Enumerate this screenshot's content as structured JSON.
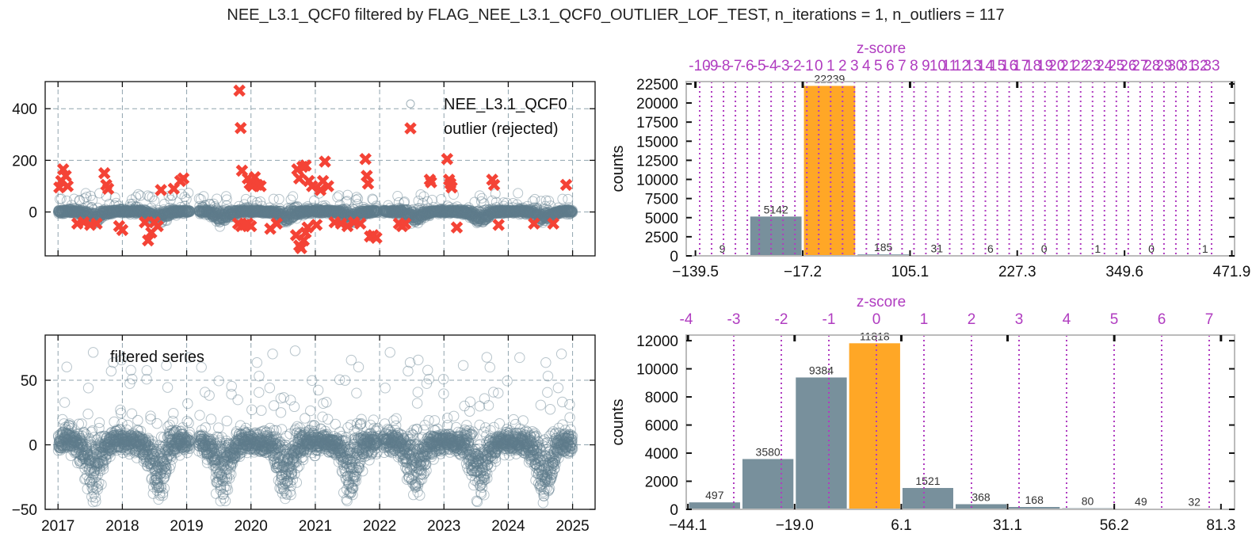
{
  "figure": {
    "title": "NEE_L3.1_QCF0 filtered by FLAG_NEE_L3.1_QCF0_OUTLIER_LOF_TEST, n_iterations = 1, n_outliers = 117"
  },
  "colors": {
    "series": "#607d8b",
    "outlier": "#f44336",
    "bar": "#78909c",
    "bar_highlight": "#ffa726",
    "zscore": "#b03cc0",
    "grid": "#90a4ae"
  },
  "chart_data": [
    {
      "id": "timeseries-outliers",
      "type": "scatter",
      "title": "",
      "xlabel": "",
      "ylabel": "",
      "xlim": [
        2016.8,
        2025.35
      ],
      "ylim": [
        -170,
        505
      ],
      "yticks": [
        0,
        200,
        400
      ],
      "xticks": [
        2017,
        2018,
        2019,
        2020,
        2021,
        2022,
        2023,
        2024,
        2025
      ],
      "xticklabels_visible": false,
      "grid": true,
      "legend": {
        "position": "top-right",
        "entries": [
          "NEE_L3.1_QCF0",
          "outlier (rejected)"
        ]
      },
      "series": [
        {
          "name": "NEE_L3.1_QCF0",
          "marker": "open-circle"
        },
        {
          "name": "outlier (rejected)",
          "marker": "x",
          "points": [
            [
              2017.02,
              95
            ],
            [
              2017.05,
              120
            ],
            [
              2017.08,
              165
            ],
            [
              2017.12,
              140
            ],
            [
              2017.15,
              100
            ],
            [
              2017.3,
              -45
            ],
            [
              2017.4,
              -40
            ],
            [
              2017.5,
              -50
            ],
            [
              2017.6,
              -45
            ],
            [
              2017.72,
              150
            ],
            [
              2017.75,
              105
            ],
            [
              2017.78,
              90
            ],
            [
              2017.95,
              -55
            ],
            [
              2018.0,
              -70
            ],
            [
              2018.35,
              -40
            ],
            [
              2018.4,
              -110
            ],
            [
              2018.45,
              -80
            ],
            [
              2018.5,
              -40
            ],
            [
              2018.55,
              -55
            ],
            [
              2018.6,
              85
            ],
            [
              2018.8,
              90
            ],
            [
              2018.9,
              120
            ],
            [
              2018.95,
              130
            ],
            [
              2019.8,
              -45
            ],
            [
              2019.85,
              -55
            ],
            [
              2019.9,
              -50
            ],
            [
              2019.95,
              -45
            ],
            [
              2020.0,
              -55
            ],
            [
              2019.82,
              470
            ],
            [
              2019.84,
              325
            ],
            [
              2019.86,
              160
            ],
            [
              2019.95,
              130
            ],
            [
              2019.98,
              110
            ],
            [
              2020.02,
              100
            ],
            [
              2020.06,
              135
            ],
            [
              2020.1,
              105
            ],
            [
              2020.15,
              100
            ],
            [
              2020.3,
              -65
            ],
            [
              2020.4,
              -45
            ],
            [
              2020.7,
              -90
            ],
            [
              2020.75,
              -130
            ],
            [
              2020.78,
              -140
            ],
            [
              2020.82,
              -110
            ],
            [
              2020.85,
              -80
            ],
            [
              2020.88,
              -60
            ],
            [
              2020.72,
              165
            ],
            [
              2020.75,
              130
            ],
            [
              2020.8,
              175
            ],
            [
              2020.85,
              180
            ],
            [
              2020.9,
              120
            ],
            [
              2020.95,
              100
            ],
            [
              2021.02,
              -50
            ],
            [
              2021.08,
              85
            ],
            [
              2021.12,
              120
            ],
            [
              2021.15,
              195
            ],
            [
              2021.2,
              100
            ],
            [
              2021.3,
              -40
            ],
            [
              2021.4,
              -45
            ],
            [
              2021.5,
              -55
            ],
            [
              2021.6,
              -40
            ],
            [
              2021.7,
              -45
            ],
            [
              2021.78,
              205
            ],
            [
              2021.8,
              140
            ],
            [
              2021.82,
              110
            ],
            [
              2021.85,
              -95
            ],
            [
              2021.9,
              -90
            ],
            [
              2021.95,
              -100
            ],
            [
              2022.3,
              -45
            ],
            [
              2022.35,
              -55
            ],
            [
              2022.4,
              -45
            ],
            [
              2022.78,
              125
            ],
            [
              2022.8,
              115
            ],
            [
              2023.05,
              205
            ],
            [
              2023.08,
              125
            ],
            [
              2023.1,
              110
            ],
            [
              2023.12,
              95
            ],
            [
              2023.2,
              -60
            ],
            [
              2023.75,
              125
            ],
            [
              2023.78,
              105
            ],
            [
              2023.85,
              -50
            ],
            [
              2024.4,
              -45
            ],
            [
              2024.7,
              -45
            ],
            [
              2024.9,
              105
            ]
          ]
        }
      ]
    },
    {
      "id": "histogram-top",
      "type": "bar",
      "title": "",
      "xlabel": "",
      "ylabel": "counts",
      "xticklabels": [
        "−139.5",
        "−17.2",
        "105.1",
        "227.3",
        "349.6",
        "471.9"
      ],
      "xticks": [
        -139.5,
        -17.2,
        105.1,
        227.3,
        349.6,
        471.9
      ],
      "xlim": [
        -150,
        475
      ],
      "ylim": [
        0,
        22800
      ],
      "yticks": [
        0,
        2500,
        5000,
        7500,
        10000,
        12500,
        15000,
        17500,
        20000,
        22500
      ],
      "bins_edges": [
        -139.5,
        -78.35,
        -17.2,
        43.95,
        105.1,
        166.2,
        227.3,
        288.45,
        349.6,
        410.75,
        471.9
      ],
      "values": [
        9,
        5142,
        22239,
        185,
        31,
        6,
        0,
        1,
        0,
        1
      ],
      "highlight_index": 2,
      "secondary_axis": {
        "label": "z-score",
        "ticklabels": [
          "-10",
          "-9",
          "-8",
          "-7",
          "-6",
          "-5",
          "-4",
          "-3",
          "-2",
          "-1",
          "0",
          "1",
          "2",
          "3",
          "4",
          "5",
          "6",
          "7",
          "8",
          "9",
          "10",
          "11",
          "12",
          "13",
          "14",
          "15",
          "16",
          "17",
          "18",
          "19",
          "20",
          "21",
          "22",
          "23",
          "24",
          "25",
          "26",
          "27",
          "28",
          "29",
          "30",
          "31",
          "32",
          "33"
        ],
        "values": [
          -10,
          -9,
          -8,
          -7,
          -6,
          -5,
          -4,
          -3,
          -2,
          -1,
          0,
          1,
          2,
          3,
          4,
          5,
          6,
          7,
          8,
          9,
          10,
          11,
          12,
          13,
          14,
          15,
          16,
          17,
          18,
          19,
          20,
          21,
          22,
          23,
          24,
          25,
          26,
          27,
          28,
          29,
          30,
          31,
          32,
          33
        ]
      }
    },
    {
      "id": "timeseries-filtered",
      "type": "scatter",
      "title": "",
      "xlabel": "",
      "ylabel": "",
      "xlim": [
        2016.8,
        2025.35
      ],
      "ylim": [
        -50,
        85
      ],
      "yticks": [
        -50,
        0,
        50
      ],
      "xticks": [
        2017,
        2018,
        2019,
        2020,
        2021,
        2022,
        2023,
        2024,
        2025
      ],
      "xticklabels": [
        "2017",
        "2018",
        "2019",
        "2020",
        "2021",
        "2022",
        "2023",
        "2024",
        "2025"
      ],
      "grid": true,
      "legend": {
        "position": "top-left",
        "entries": [
          "filtered series"
        ]
      },
      "series": [
        {
          "name": "filtered series",
          "marker": "open-circle"
        }
      ]
    },
    {
      "id": "histogram-bottom",
      "type": "bar",
      "title": "",
      "xlabel": "",
      "ylabel": "counts",
      "xticklabels": [
        "−44.1",
        "−19.0",
        "6.1",
        "31.1",
        "56.2",
        "81.3"
      ],
      "xticks": [
        -44.1,
        -19.0,
        6.1,
        31.1,
        56.2,
        81.3
      ],
      "xlim": [
        -44.5,
        84.5
      ],
      "ylim": [
        0,
        12400
      ],
      "yticks": [
        0,
        2000,
        4000,
        6000,
        8000,
        10000,
        12000
      ],
      "bins_edges": [
        -44.1,
        -31.55,
        -19.0,
        -6.45,
        6.1,
        18.6,
        31.1,
        43.65,
        56.2,
        68.75,
        81.3
      ],
      "values": [
        497,
        3580,
        9384,
        11818,
        1521,
        368,
        168,
        80,
        49,
        32
      ],
      "highlight_index": 3,
      "secondary_axis": {
        "label": "z-score",
        "ticklabels": [
          "-4",
          "-3",
          "-2",
          "-1",
          "0",
          "1",
          "2",
          "3",
          "4",
          "5",
          "6",
          "7"
        ],
        "values": [
          -4,
          -3,
          -2,
          -1,
          0,
          1,
          2,
          3,
          4,
          5,
          6,
          7
        ]
      }
    }
  ]
}
